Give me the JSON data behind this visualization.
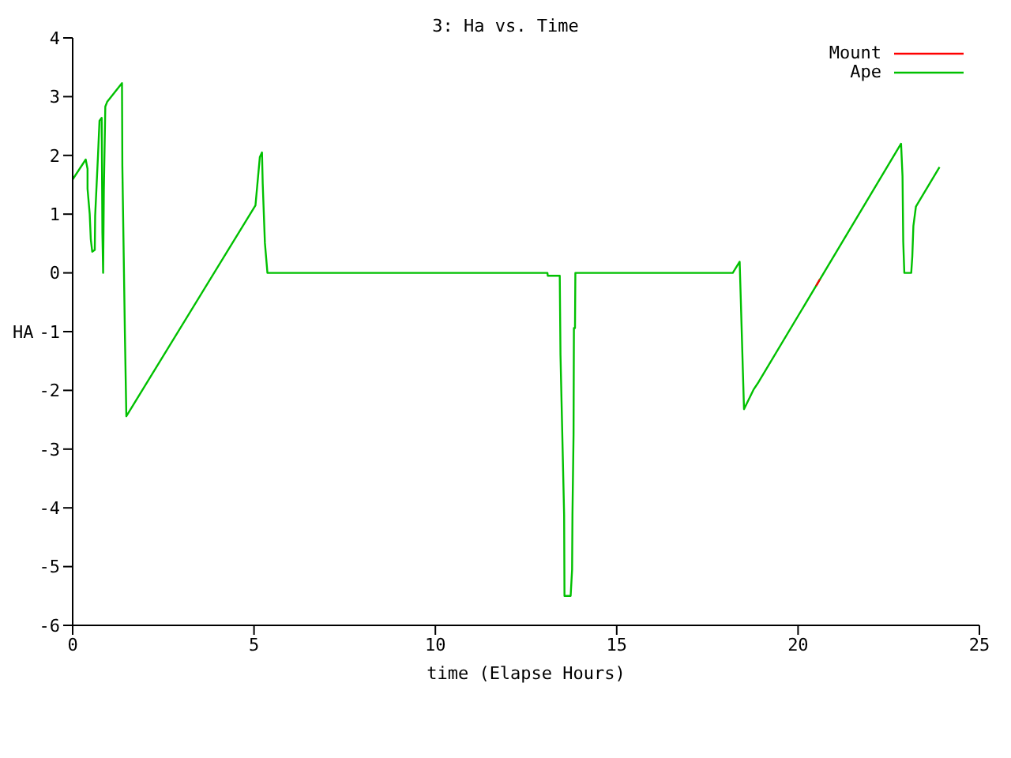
{
  "chart_data": {
    "type": "line",
    "title": "3: Ha vs. Time",
    "xlabel": "time (Elapse Hours)",
    "ylabel": "HA",
    "x": [
      0,
      0.36,
      0.41,
      0.41,
      0.47,
      0.5,
      0.54,
      0.61,
      0.62,
      0.7,
      0.74,
      0.8,
      0.82,
      0.84,
      0.86,
      0.9,
      0.95,
      1.36,
      1.37,
      1.44,
      1.48,
      5.04,
      5.16,
      5.22,
      5.24,
      5.3,
      5.37,
      13.09,
      13.1,
      13.43,
      13.45,
      13.55,
      13.56,
      13.73,
      13.77,
      13.78,
      13.81,
      13.82,
      13.85,
      13.86,
      13.89,
      18.2,
      18.39,
      18.42,
      18.48,
      18.51,
      18.77,
      18.91,
      22.84,
      22.88,
      22.9,
      22.93,
      23.12,
      23.15,
      23.18,
      23.25,
      23.9
    ],
    "series": [
      {
        "name": "Mount",
        "color": "#ff0000",
        "x": [
          20.5,
          20.6
        ],
        "values": [
          -0.22,
          -0.11
        ]
      },
      {
        "name": "Ape",
        "color": "#00c000",
        "values": [
          1.59,
          1.93,
          1.77,
          1.43,
          1.0,
          0.57,
          0.36,
          0.39,
          0.97,
          2.02,
          2.59,
          2.64,
          0.68,
          0,
          1.41,
          2.83,
          2.91,
          3.23,
          1.82,
          -1.03,
          -2.44,
          1.15,
          1.97,
          2.05,
          1.52,
          0.51,
          0,
          0,
          -0.05,
          -0.05,
          -1.4,
          -4.12,
          -5.5,
          -5.5,
          -5.05,
          -4.12,
          -2.75,
          -0.94,
          -0.94,
          0,
          0,
          0,
          0.19,
          -0.43,
          -1.7,
          -2.32,
          -1.99,
          -1.86,
          2.2,
          1.65,
          0.53,
          0,
          0,
          0.28,
          0.8,
          1.13,
          1.8
        ]
      }
    ],
    "xlim": [
      0,
      25
    ],
    "xticks": [
      0,
      5,
      10,
      15,
      20,
      25
    ],
    "ylim": [
      -6,
      4
    ],
    "yticks": [
      -6,
      -5,
      -4,
      -3,
      -2,
      -1,
      0,
      1,
      2,
      3,
      4
    ],
    "legend": "top right",
    "marker": "none",
    "line_style": "solid"
  }
}
